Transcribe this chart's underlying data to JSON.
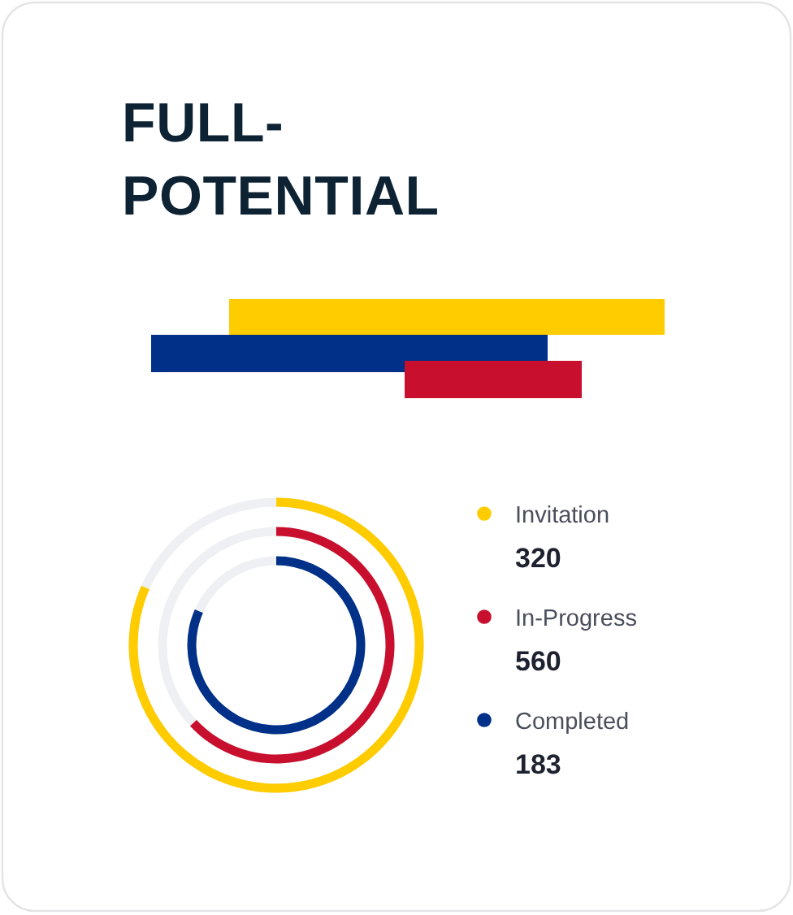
{
  "chart_data": {
    "type": "other",
    "title": "FULL-POTENTIAL",
    "categories": [
      "Invitation",
      "In-Progress",
      "Completed"
    ],
    "values": [
      320,
      560,
      183
    ],
    "colors": [
      "#ffcc00",
      "#c8102e",
      "#003087"
    ],
    "data_labels": true
  }
}
